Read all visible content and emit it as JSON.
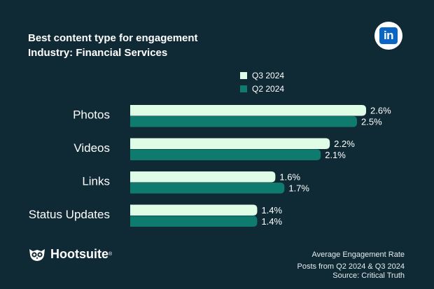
{
  "header": {
    "title": "Best content type for engagement",
    "subtitle": "Industry: Financial Services"
  },
  "brand": {
    "name": "Hootsuite",
    "reg_mark": "®",
    "logo_text": "in"
  },
  "footer": {
    "metric": "Average Engagement Rate",
    "period": "Posts from Q2 2024 & Q3 2024",
    "source": "Source: Critical Truth"
  },
  "colors": {
    "background": "#0f2a35",
    "q3": "#dffde6",
    "q2": "#0f7a6e",
    "text": "#ffffff"
  },
  "chart_data": {
    "type": "bar",
    "orientation": "horizontal",
    "title": "Best content type for engagement",
    "subtitle": "Industry: Financial Services",
    "categories": [
      "Photos",
      "Videos",
      "Links",
      "Status Updates"
    ],
    "series": [
      {
        "name": "Q3 2024",
        "values": [
          2.6,
          2.2,
          1.6,
          1.4
        ],
        "labels": [
          "2.6%",
          "2.2%",
          "1.6%",
          "1.4%"
        ],
        "color": "#dffde6"
      },
      {
        "name": "Q2 2024",
        "values": [
          2.5,
          2.1,
          1.7,
          1.4
        ],
        "labels": [
          "2.5%",
          "2.1%",
          "1.7%",
          "1.4%"
        ],
        "color": "#0f7a6e"
      }
    ],
    "xlim": [
      0,
      2.6
    ],
    "legend": "top-center",
    "grid": false
  }
}
